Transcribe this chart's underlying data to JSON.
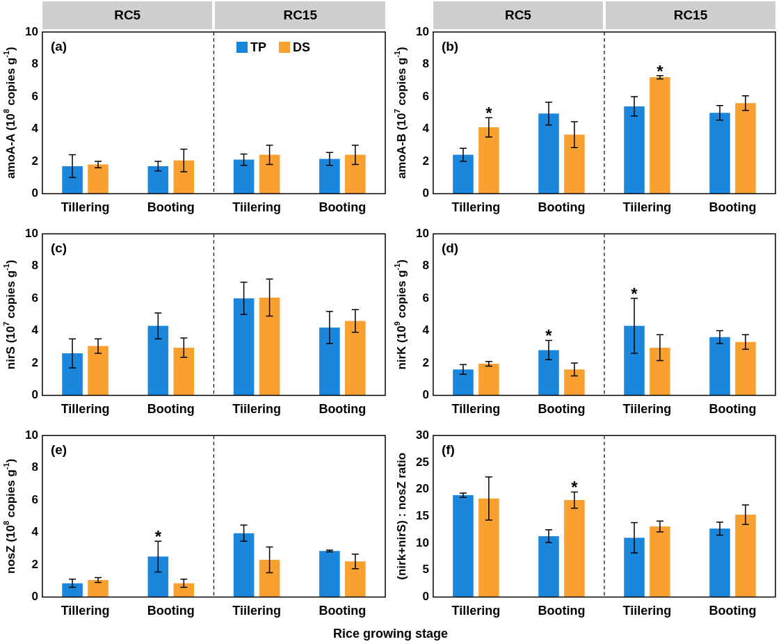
{
  "chart_data": [
    {
      "type": "bar",
      "title": "(a)",
      "ylabel": "amoA-A (10$^{8}$ copies g$^{-1}$)",
      "categories": [
        "Tillering",
        "Booting",
        "Tiilering",
        "Booting"
      ],
      "annotations": [
        "RC5",
        "RC15"
      ],
      "legend": "top right",
      "ylim": [
        0,
        10
      ],
      "yticks": [
        0,
        2,
        4,
        6,
        8,
        10
      ],
      "series": [
        {
          "name": "TP",
          "color": "#1a86dc",
          "values": [
            1.7,
            1.7,
            2.1,
            2.15
          ],
          "errors": [
            0.7,
            0.3,
            0.35,
            0.4
          ]
        },
        {
          "name": "DS",
          "color": "#f9a031",
          "values": [
            1.8,
            2.05,
            2.4,
            2.4
          ],
          "errors": [
            0.2,
            0.7,
            0.6,
            0.6
          ]
        }
      ]
    },
    {
      "type": "bar",
      "title": "(b)",
      "ylabel": "amoA-B (10$^{7}$ copies g$^{-1}$)",
      "categories": [
        "Tillering",
        "Booting",
        "Tiilering",
        "Booting"
      ],
      "annotations": [
        "RC5",
        "RC15"
      ],
      "ylim": [
        0,
        10
      ],
      "yticks": [
        0,
        2,
        4,
        6,
        8,
        10
      ],
      "series": [
        {
          "color": "#1a86dc",
          "values": [
            2.4,
            4.95,
            5.4,
            5.0
          ],
          "errors": [
            0.4,
            0.7,
            0.6,
            0.45
          ],
          "value_labels": [
            null,
            null,
            null,
            null
          ]
        },
        {
          "color": "#f9a031",
          "values": [
            4.1,
            3.65,
            7.2,
            5.6
          ],
          "errors": [
            0.6,
            0.8,
            0.1,
            0.45
          ],
          "value_labels": [
            "*",
            null,
            "*",
            null
          ]
        }
      ]
    },
    {
      "type": "bar",
      "title": "(c)",
      "ylabel": "nirS (10$^{7}$ copies g$^{-1}$)",
      "categories": [
        "Tillering",
        "Booting",
        "Tiilering",
        "Booting"
      ],
      "ylim": [
        0,
        10
      ],
      "yticks": [
        0,
        2,
        4,
        6,
        8,
        10
      ],
      "series": [
        {
          "color": "#1a86dc",
          "values": [
            2.6,
            4.3,
            6.0,
            4.2
          ],
          "errors": [
            0.9,
            0.8,
            1.0,
            1.0
          ]
        },
        {
          "color": "#f9a031",
          "values": [
            3.05,
            2.95,
            6.05,
            4.6
          ],
          "errors": [
            0.45,
            0.6,
            1.15,
            0.7
          ]
        }
      ]
    },
    {
      "type": "bar",
      "title": "(d)",
      "ylabel": "nirK (10$^{9}$ copies g$^{-1}$)",
      "categories": [
        "Tillering",
        "Booting",
        "Tiilering",
        "Booting"
      ],
      "ylim": [
        0,
        10
      ],
      "yticks": [
        0,
        2,
        4,
        6,
        8,
        10
      ],
      "series": [
        {
          "color": "#1a86dc",
          "values": [
            1.6,
            2.8,
            4.3,
            3.6
          ],
          "errors": [
            0.3,
            0.6,
            1.7,
            0.4
          ],
          "value_labels": [
            null,
            "*",
            "*",
            null
          ]
        },
        {
          "color": "#f9a031",
          "values": [
            1.95,
            1.6,
            2.95,
            3.3
          ],
          "errors": [
            0.15,
            0.4,
            0.8,
            0.45
          ]
        }
      ]
    },
    {
      "type": "bar",
      "title": "(e)",
      "ylabel": "nosZ (10$^{8}$ copies g$^{-1}$)",
      "xlabel": "Rice growing stage",
      "categories": [
        "Tillering",
        "Booting",
        "Tiilering",
        "Booting"
      ],
      "ylim": [
        0,
        10
      ],
      "yticks": [
        0,
        2,
        4,
        6,
        8,
        10
      ],
      "series": [
        {
          "color": "#1a86dc",
          "values": [
            0.85,
            2.5,
            3.95,
            2.85
          ],
          "errors": [
            0.25,
            0.95,
            0.5,
            0.05
          ],
          "value_labels": [
            null,
            "*",
            null,
            null
          ]
        },
        {
          "color": "#f9a031",
          "values": [
            1.05,
            0.85,
            2.3,
            2.2
          ],
          "errors": [
            0.15,
            0.25,
            0.8,
            0.45
          ]
        }
      ]
    },
    {
      "type": "bar",
      "title": "(f)",
      "ylabel": "(nirk+nirS) : nosZ ratio",
      "categories": [
        "Tillering",
        "Booting",
        "Tiilering",
        "Booting"
      ],
      "ylim": [
        0,
        30
      ],
      "yticks": [
        0,
        5,
        10,
        15,
        20,
        25,
        30
      ],
      "series": [
        {
          "color": "#1a86dc",
          "values": [
            18.9,
            11.3,
            11.0,
            12.7
          ],
          "errors": [
            0.4,
            1.2,
            2.8,
            1.2
          ]
        },
        {
          "color": "#f9a031",
          "values": [
            18.3,
            18.0,
            13.1,
            15.3
          ],
          "errors": [
            4.0,
            1.5,
            1.0,
            1.8
          ],
          "value_labels": [
            null,
            "*",
            null,
            null
          ]
        }
      ]
    }
  ]
}
